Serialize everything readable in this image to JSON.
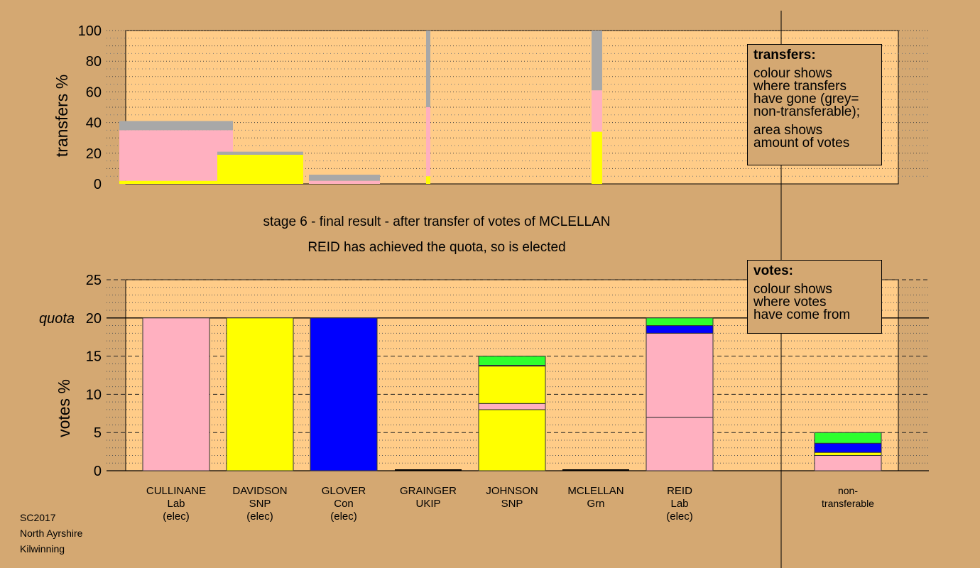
{
  "chart_data": [
    {
      "type": "bar",
      "ylabel": "transfers %",
      "ylim": [
        0,
        100
      ],
      "yticks": [
        0,
        20,
        40,
        60,
        80,
        100
      ],
      "grid": "dotted",
      "stack_order": [
        "yellow",
        "pink",
        "grey"
      ],
      "columns": [
        {
          "candidate": "CULLINANE",
          "segments": [
            2,
            33,
            6
          ]
        },
        {
          "candidate": "DAVIDSON",
          "segments": [
            19,
            0,
            2
          ]
        },
        {
          "candidate": "GLOVER",
          "segments": [
            0,
            2,
            4
          ]
        },
        {
          "candidate": "GRAINGER",
          "segments": [
            5,
            45,
            50
          ]
        },
        {
          "candidate": "MCLELLAN",
          "segments": [
            34,
            27,
            39
          ]
        }
      ],
      "legend": {
        "title": "transfers:",
        "lines1": [
          "colour shows",
          "where transfers",
          "have gone (grey=",
          "non-transferable);"
        ],
        "lines2": [
          "area shows",
          "amount of votes"
        ]
      }
    },
    {
      "type": "bar",
      "ylabel": "votes %",
      "ylim": [
        0,
        25
      ],
      "yticks": [
        0,
        5,
        10,
        15,
        20,
        25
      ],
      "quota": 20,
      "quota_label": "quota",
      "grid": "dashed",
      "categories": [
        [
          "CULLINANE",
          "Lab",
          "(elec)"
        ],
        [
          "DAVIDSON",
          "SNP",
          "(elec)"
        ],
        [
          "GLOVER",
          "Con",
          "(elec)"
        ],
        [
          "GRAINGER",
          "UKIP"
        ],
        [
          "JOHNSON",
          "SNP"
        ],
        [
          "MCLELLAN",
          "Grn"
        ],
        [
          "REID",
          "Lab",
          "(elec)"
        ],
        [
          "non-",
          "transferable"
        ]
      ],
      "stacks": [
        [
          {
            "color": "pink",
            "value": 20
          }
        ],
        [
          {
            "color": "yellow",
            "value": 20
          }
        ],
        [
          {
            "color": "blue",
            "value": 20
          }
        ],
        [],
        [
          {
            "color": "yellow",
            "value": 8
          },
          {
            "color": "pink",
            "value": 0.8
          },
          {
            "color": "yellow",
            "value": 4.9
          },
          {
            "color": "blue",
            "value": 0.1
          },
          {
            "color": "green",
            "value": 1.2
          }
        ],
        [],
        [
          {
            "color": "pink",
            "value": 7
          },
          {
            "color": "pink",
            "value": 11
          },
          {
            "color": "blue",
            "value": 1
          },
          {
            "color": "green",
            "value": 1
          }
        ],
        [
          {
            "color": "pink",
            "value": 2
          },
          {
            "color": "yellow",
            "value": 0.4
          },
          {
            "color": "blue",
            "value": 1.2
          },
          {
            "color": "green",
            "value": 1.4
          }
        ]
      ],
      "legend": {
        "title": "votes:",
        "lines": [
          "colour shows",
          "where votes",
          "have come from"
        ]
      }
    }
  ],
  "colors": {
    "pink": "#ffb0c0",
    "yellow": "#ffff00",
    "blue": "#0000ff",
    "green": "#2eff2e",
    "grey": "#a8a8a8",
    "plot_bg": "#ffcc88",
    "page_bg": "#d4a872"
  },
  "captions": {
    "stage": "stage 6 - final result - after transfer of votes of MCLELLAN",
    "result": "REID has achieved the quota, so is elected"
  },
  "footer": {
    "line1": "SC2017",
    "line2": "North Ayrshire",
    "line3": "Kilwinning"
  }
}
